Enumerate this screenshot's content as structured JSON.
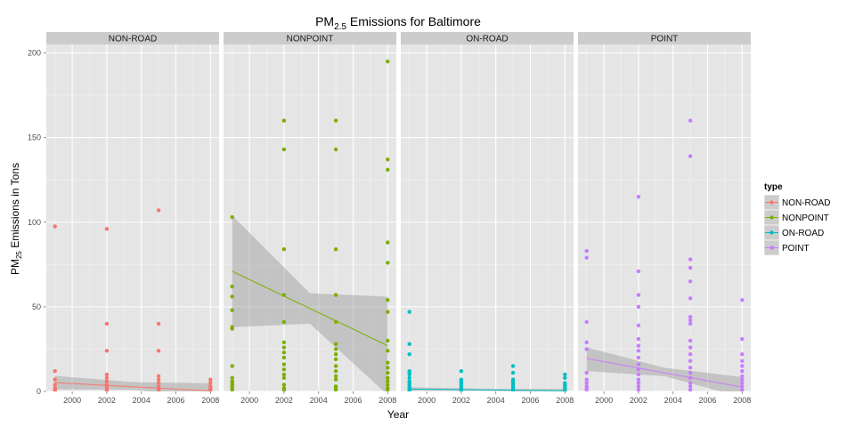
{
  "chart_data": {
    "type": "scatter",
    "title": "PM",
    "title_sub": "2.5",
    "title_rest": " Emissions for Baltimore",
    "xlabel": "Year",
    "ylabel": "PM",
    "ylabel_sub": "25",
    "ylabel_rest": " Emissions in Tons",
    "xlim": [
      1998.5,
      2008.5
    ],
    "ylim": [
      0,
      205
    ],
    "xticks": [
      2000,
      2002,
      2004,
      2006,
      2008
    ],
    "yticks": [
      0,
      50,
      100,
      150,
      200
    ],
    "grid": true,
    "legend_position": "right",
    "legend_title": "type",
    "panels": [
      {
        "name": "NON-ROAD",
        "color": "#F8766D",
        "points": [
          [
            1999,
            97.5
          ],
          [
            1999,
            12
          ],
          [
            1999,
            7
          ],
          [
            1999,
            4
          ],
          [
            1999,
            2
          ],
          [
            1999,
            1
          ],
          [
            1999,
            0.5
          ],
          [
            1999,
            0.2
          ],
          [
            2002,
            96
          ],
          [
            2002,
            40
          ],
          [
            2002,
            24
          ],
          [
            2002,
            10
          ],
          [
            2002,
            8
          ],
          [
            2002,
            6
          ],
          [
            2002,
            4
          ],
          [
            2002,
            3
          ],
          [
            2002,
            2
          ],
          [
            2002,
            1
          ],
          [
            2002,
            0.3
          ],
          [
            2005,
            107
          ],
          [
            2005,
            40
          ],
          [
            2005,
            24
          ],
          [
            2005,
            9
          ],
          [
            2005,
            7
          ],
          [
            2005,
            5
          ],
          [
            2005,
            3
          ],
          [
            2005,
            2
          ],
          [
            2005,
            1
          ],
          [
            2005,
            0.3
          ],
          [
            2008,
            7
          ],
          [
            2008,
            5
          ],
          [
            2008,
            3
          ],
          [
            2008,
            2
          ],
          [
            2008,
            1
          ],
          [
            2008,
            0.5
          ],
          [
            2008,
            0.2
          ]
        ],
        "fit": [
          [
            1999,
            5.2
          ],
          [
            2008,
            0.3
          ]
        ],
        "band": [
          [
            1999,
            1.2,
            9.2
          ],
          [
            2003.5,
            1.0,
            5.5
          ],
          [
            2008,
            -4.2,
            4.8
          ]
        ]
      },
      {
        "name": "NONPOINT",
        "color": "#7CAE00",
        "points": [
          [
            1999,
            103
          ],
          [
            1999,
            62
          ],
          [
            1999,
            56
          ],
          [
            1999,
            48
          ],
          [
            1999,
            38
          ],
          [
            1999,
            37
          ],
          [
            1999,
            15
          ],
          [
            1999,
            8
          ],
          [
            1999,
            6
          ],
          [
            1999,
            5
          ],
          [
            1999,
            4
          ],
          [
            1999,
            3
          ],
          [
            1999,
            2
          ],
          [
            1999,
            1
          ],
          [
            2002,
            160
          ],
          [
            2002,
            143
          ],
          [
            2002,
            84
          ],
          [
            2002,
            57
          ],
          [
            2002,
            41
          ],
          [
            2002,
            29
          ],
          [
            2002,
            26
          ],
          [
            2002,
            23
          ],
          [
            2002,
            20
          ],
          [
            2002,
            16
          ],
          [
            2002,
            13
          ],
          [
            2002,
            10
          ],
          [
            2002,
            8
          ],
          [
            2002,
            4
          ],
          [
            2002,
            2
          ],
          [
            2002,
            1
          ],
          [
            2005,
            160
          ],
          [
            2005,
            143
          ],
          [
            2005,
            84
          ],
          [
            2005,
            57
          ],
          [
            2005,
            41
          ],
          [
            2005,
            28
          ],
          [
            2005,
            25
          ],
          [
            2005,
            22
          ],
          [
            2005,
            19
          ],
          [
            2005,
            15
          ],
          [
            2005,
            12
          ],
          [
            2005,
            9
          ],
          [
            2005,
            7
          ],
          [
            2005,
            3
          ],
          [
            2005,
            2
          ],
          [
            2005,
            1
          ],
          [
            2008,
            195
          ],
          [
            2008,
            137
          ],
          [
            2008,
            131
          ],
          [
            2008,
            88
          ],
          [
            2008,
            76
          ],
          [
            2008,
            54
          ],
          [
            2008,
            47
          ],
          [
            2008,
            30
          ],
          [
            2008,
            24
          ],
          [
            2008,
            17
          ],
          [
            2008,
            14
          ],
          [
            2008,
            11
          ],
          [
            2008,
            8
          ],
          [
            2008,
            6
          ],
          [
            2008,
            4
          ],
          [
            2008,
            2
          ],
          [
            2008,
            1
          ]
        ],
        "fit": [
          [
            1999,
            71
          ],
          [
            2008,
            27
          ]
        ],
        "band": [
          [
            1999,
            38,
            104
          ],
          [
            2003.5,
            40,
            58
          ],
          [
            2008,
            -2,
            56
          ]
        ]
      },
      {
        "name": "ON-ROAD",
        "color": "#00BFC4",
        "points": [
          [
            1999,
            47
          ],
          [
            1999,
            28
          ],
          [
            1999,
            22
          ],
          [
            1999,
            12
          ],
          [
            1999,
            11
          ],
          [
            1999,
            10
          ],
          [
            1999,
            8
          ],
          [
            1999,
            6
          ],
          [
            1999,
            5
          ],
          [
            1999,
            4
          ],
          [
            1999,
            3
          ],
          [
            1999,
            2
          ],
          [
            1999,
            1
          ],
          [
            1999,
            0.5
          ],
          [
            2002,
            12
          ],
          [
            2002,
            7
          ],
          [
            2002,
            6
          ],
          [
            2002,
            5
          ],
          [
            2002,
            4
          ],
          [
            2002,
            3
          ],
          [
            2002,
            2
          ],
          [
            2002,
            1
          ],
          [
            2002,
            0.5
          ],
          [
            2005,
            15
          ],
          [
            2005,
            11
          ],
          [
            2005,
            7
          ],
          [
            2005,
            6
          ],
          [
            2005,
            5
          ],
          [
            2005,
            4
          ],
          [
            2005,
            3
          ],
          [
            2005,
            2
          ],
          [
            2005,
            1
          ],
          [
            2005,
            0.5
          ],
          [
            2008,
            10
          ],
          [
            2008,
            8
          ],
          [
            2008,
            5
          ],
          [
            2008,
            4
          ],
          [
            2008,
            3
          ],
          [
            2008,
            2
          ],
          [
            2008,
            1
          ],
          [
            2008,
            0.5
          ]
        ],
        "fit": [
          [
            1999,
            1.4
          ],
          [
            2008,
            0.4
          ]
        ],
        "band": [
          [
            1999,
            0.3,
            2.5
          ],
          [
            2003.5,
            0.4,
            1.5
          ],
          [
            2008,
            -0.7,
            1.5
          ]
        ]
      },
      {
        "name": "POINT",
        "color": "#C77CFF",
        "points": [
          [
            1999,
            83
          ],
          [
            1999,
            79
          ],
          [
            1999,
            41
          ],
          [
            1999,
            29
          ],
          [
            1999,
            25
          ],
          [
            1999,
            11
          ],
          [
            1999,
            7
          ],
          [
            1999,
            5
          ],
          [
            1999,
            3
          ],
          [
            1999,
            2
          ],
          [
            1999,
            1
          ],
          [
            2002,
            115
          ],
          [
            2002,
            71
          ],
          [
            2002,
            57
          ],
          [
            2002,
            50
          ],
          [
            2002,
            39
          ],
          [
            2002,
            31
          ],
          [
            2002,
            27
          ],
          [
            2002,
            24
          ],
          [
            2002,
            20
          ],
          [
            2002,
            16
          ],
          [
            2002,
            13
          ],
          [
            2002,
            10
          ],
          [
            2002,
            7
          ],
          [
            2002,
            5
          ],
          [
            2002,
            3
          ],
          [
            2002,
            1
          ],
          [
            2005,
            160
          ],
          [
            2005,
            139
          ],
          [
            2005,
            78
          ],
          [
            2005,
            73
          ],
          [
            2005,
            65
          ],
          [
            2005,
            55
          ],
          [
            2005,
            44
          ],
          [
            2005,
            42
          ],
          [
            2005,
            40
          ],
          [
            2005,
            30
          ],
          [
            2005,
            26
          ],
          [
            2005,
            22
          ],
          [
            2005,
            18
          ],
          [
            2005,
            14
          ],
          [
            2005,
            11
          ],
          [
            2005,
            8
          ],
          [
            2005,
            5
          ],
          [
            2005,
            3
          ],
          [
            2005,
            1
          ],
          [
            2008,
            54
          ],
          [
            2008,
            31
          ],
          [
            2008,
            22
          ],
          [
            2008,
            18
          ],
          [
            2008,
            15
          ],
          [
            2008,
            12
          ],
          [
            2008,
            9
          ],
          [
            2008,
            7
          ],
          [
            2008,
            5
          ],
          [
            2008,
            3
          ],
          [
            2008,
            1
          ]
        ],
        "fit": [
          [
            1999,
            19.5
          ],
          [
            2008,
            2.5
          ]
        ],
        "band": [
          [
            1999,
            12,
            26
          ],
          [
            2003.5,
            9,
            14
          ],
          [
            2008,
            -3.5,
            8.5
          ]
        ]
      }
    ]
  }
}
